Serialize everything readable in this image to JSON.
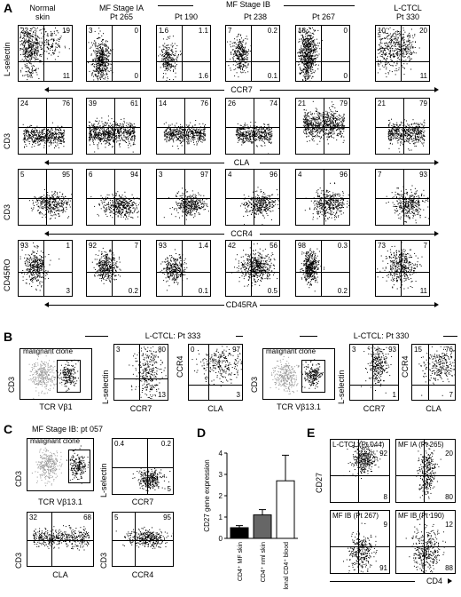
{
  "panel_letters": {
    "A": "A",
    "B": "B",
    "C": "C",
    "D": "D",
    "E": "E"
  },
  "panelA": {
    "columns": [
      "Normal\nskin",
      "MF Stage IA\nPt 265",
      "Pt 190",
      "Pt 238",
      "Pt 267",
      "L-CTCL\nPt 330"
    ],
    "group_header": "MF Stage IB",
    "rows": [
      {
        "ylabel": "L-selectin",
        "xlabel": "CCR7",
        "quads": [
          [
            "22",
            "19",
            "",
            "11"
          ],
          [
            "3",
            "0",
            "",
            "0"
          ],
          [
            "1.6",
            "1.1",
            "",
            "1.6"
          ],
          [
            "7",
            "0.2",
            "",
            "0.1"
          ],
          [
            "18",
            "0",
            "",
            "0"
          ],
          [
            "10",
            "20",
            "",
            "11"
          ]
        ]
      },
      {
        "ylabel": "CD3",
        "xlabel": "CLA",
        "quads": [
          [
            "24",
            "76",
            "",
            ""
          ],
          [
            "39",
            "61",
            "",
            ""
          ],
          [
            "14",
            "76",
            "",
            ""
          ],
          [
            "26",
            "74",
            "",
            ""
          ],
          [
            "21",
            "79",
            "",
            ""
          ],
          [
            "21",
            "79",
            "",
            ""
          ]
        ]
      },
      {
        "ylabel": "CD3",
        "xlabel": "CCR4",
        "quads": [
          [
            "5",
            "95",
            "",
            ""
          ],
          [
            "6",
            "94",
            "",
            ""
          ],
          [
            "3",
            "97",
            "",
            ""
          ],
          [
            "4",
            "96",
            "",
            ""
          ],
          [
            "4",
            "96",
            "",
            ""
          ],
          [
            "7",
            "93",
            "",
            ""
          ]
        ]
      },
      {
        "ylabel": "CD45RO",
        "xlabel": "CD45RA",
        "quads": [
          [
            "93",
            "1",
            "",
            "3"
          ],
          [
            "92",
            "7",
            "",
            "0.2"
          ],
          [
            "93",
            "1.4",
            "",
            "0.1"
          ],
          [
            "42",
            "56",
            "",
            "0.5"
          ],
          [
            "98",
            "0.3",
            "",
            "0.2"
          ],
          [
            "73",
            "7",
            "",
            "11"
          ]
        ]
      }
    ]
  },
  "panelB": {
    "left_title": "L-CTCL: Pt 333",
    "right_title": "L-CTCL: Pt 330",
    "malignant_clone": "malignant clone",
    "left": {
      "gate": {
        "ylabel": "CD3",
        "xlabel": "TCR Vβ1"
      },
      "p1": {
        "ylabel": "L-selectin",
        "xlabel": "CCR7",
        "quads": [
          "3",
          "80",
          "",
          "13"
        ]
      },
      "p2": {
        "ylabel": "CCR4",
        "xlabel": "CLA",
        "quads": [
          "0",
          "97",
          "",
          "3"
        ]
      }
    },
    "right": {
      "gate": {
        "ylabel": "CD3",
        "xlabel": "TCR Vβ13.1"
      },
      "p1": {
        "ylabel": "L-selectin",
        "xlabel": "CCR7",
        "quads": [
          "3",
          "93",
          "",
          "1"
        ]
      },
      "p2": {
        "ylabel": "CCR4",
        "xlabel": "CLA",
        "quads": [
          "15",
          "76",
          "",
          "7"
        ]
      }
    }
  },
  "panelC": {
    "title": "MF Stage IB: pt 057",
    "malignant_clone": "malignant clone",
    "gate": {
      "ylabel": "CD3",
      "xlabel": "TCR Vβ13.1"
    },
    "p1": {
      "ylabel": "L-selectin",
      "xlabel": "CCR7",
      "quads": [
        "0.4",
        "0.2",
        "",
        "5"
      ]
    },
    "p2": {
      "ylabel": "CD3",
      "xlabel": "CLA",
      "quads": [
        "32",
        "68",
        "",
        ""
      ]
    },
    "p3": {
      "ylabel": "CD3",
      "xlabel": "CCR4",
      "quads": [
        "5",
        "95",
        "",
        ""
      ]
    }
  },
  "chart_data": {
    "type": "bar",
    "title": "",
    "ylabel": "CD27 gene expression",
    "xlabel": "",
    "categories": [
      "CD4⁺ MF skin",
      "CD4⁺ nml skin",
      "L-CTCL clonal CD4⁺ blood"
    ],
    "values": [
      0.5,
      1.1,
      2.7
    ],
    "errors": [
      0.1,
      0.25,
      1.2
    ],
    "colors": [
      "#000000",
      "#666666",
      "#ffffff"
    ],
    "ylim": [
      0,
      4
    ],
    "yticks": [
      "0",
      "1",
      "2",
      "3",
      "4"
    ],
    "grid": false
  },
  "panelE": {
    "xlabel": "CD4",
    "ylabel": "CD27",
    "plots": [
      {
        "title": "L-CTCL (Pt 044)",
        "tr": "92",
        "br": "8"
      },
      {
        "title": "MF IA (Pt 265)",
        "tr": "20",
        "br": "80"
      },
      {
        "title": "MF IB (Pt 267)",
        "tr": "9",
        "br": "91"
      },
      {
        "title": "MF IB (Pt 190)",
        "tr": "12",
        "br": "88"
      }
    ]
  }
}
